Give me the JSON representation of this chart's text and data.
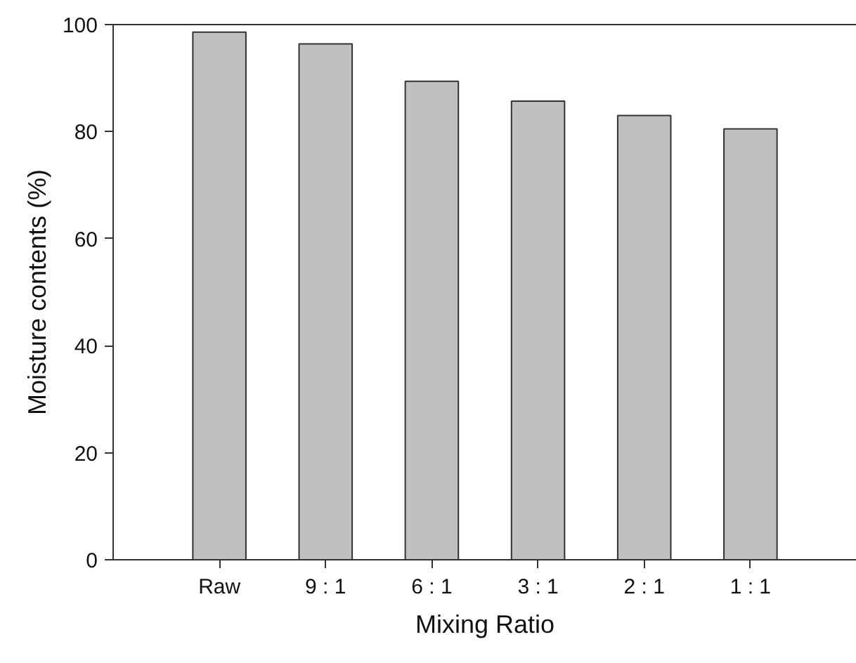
{
  "chart_data": {
    "type": "bar",
    "xlabel": "Mixing Ratio",
    "ylabel": "Moisture contents (%)",
    "categories": [
      "Raw",
      "9 : 1",
      "6 : 1",
      "3 : 1",
      "2 : 1",
      "1 : 1"
    ],
    "values": [
      98.6,
      96.4,
      89.4,
      85.7,
      83.0,
      80.5
    ],
    "color": "#c0c0c0",
    "ylim": [
      0,
      100
    ],
    "yticks": [
      0,
      20,
      40,
      60,
      80,
      100
    ],
    "grid": false
  }
}
